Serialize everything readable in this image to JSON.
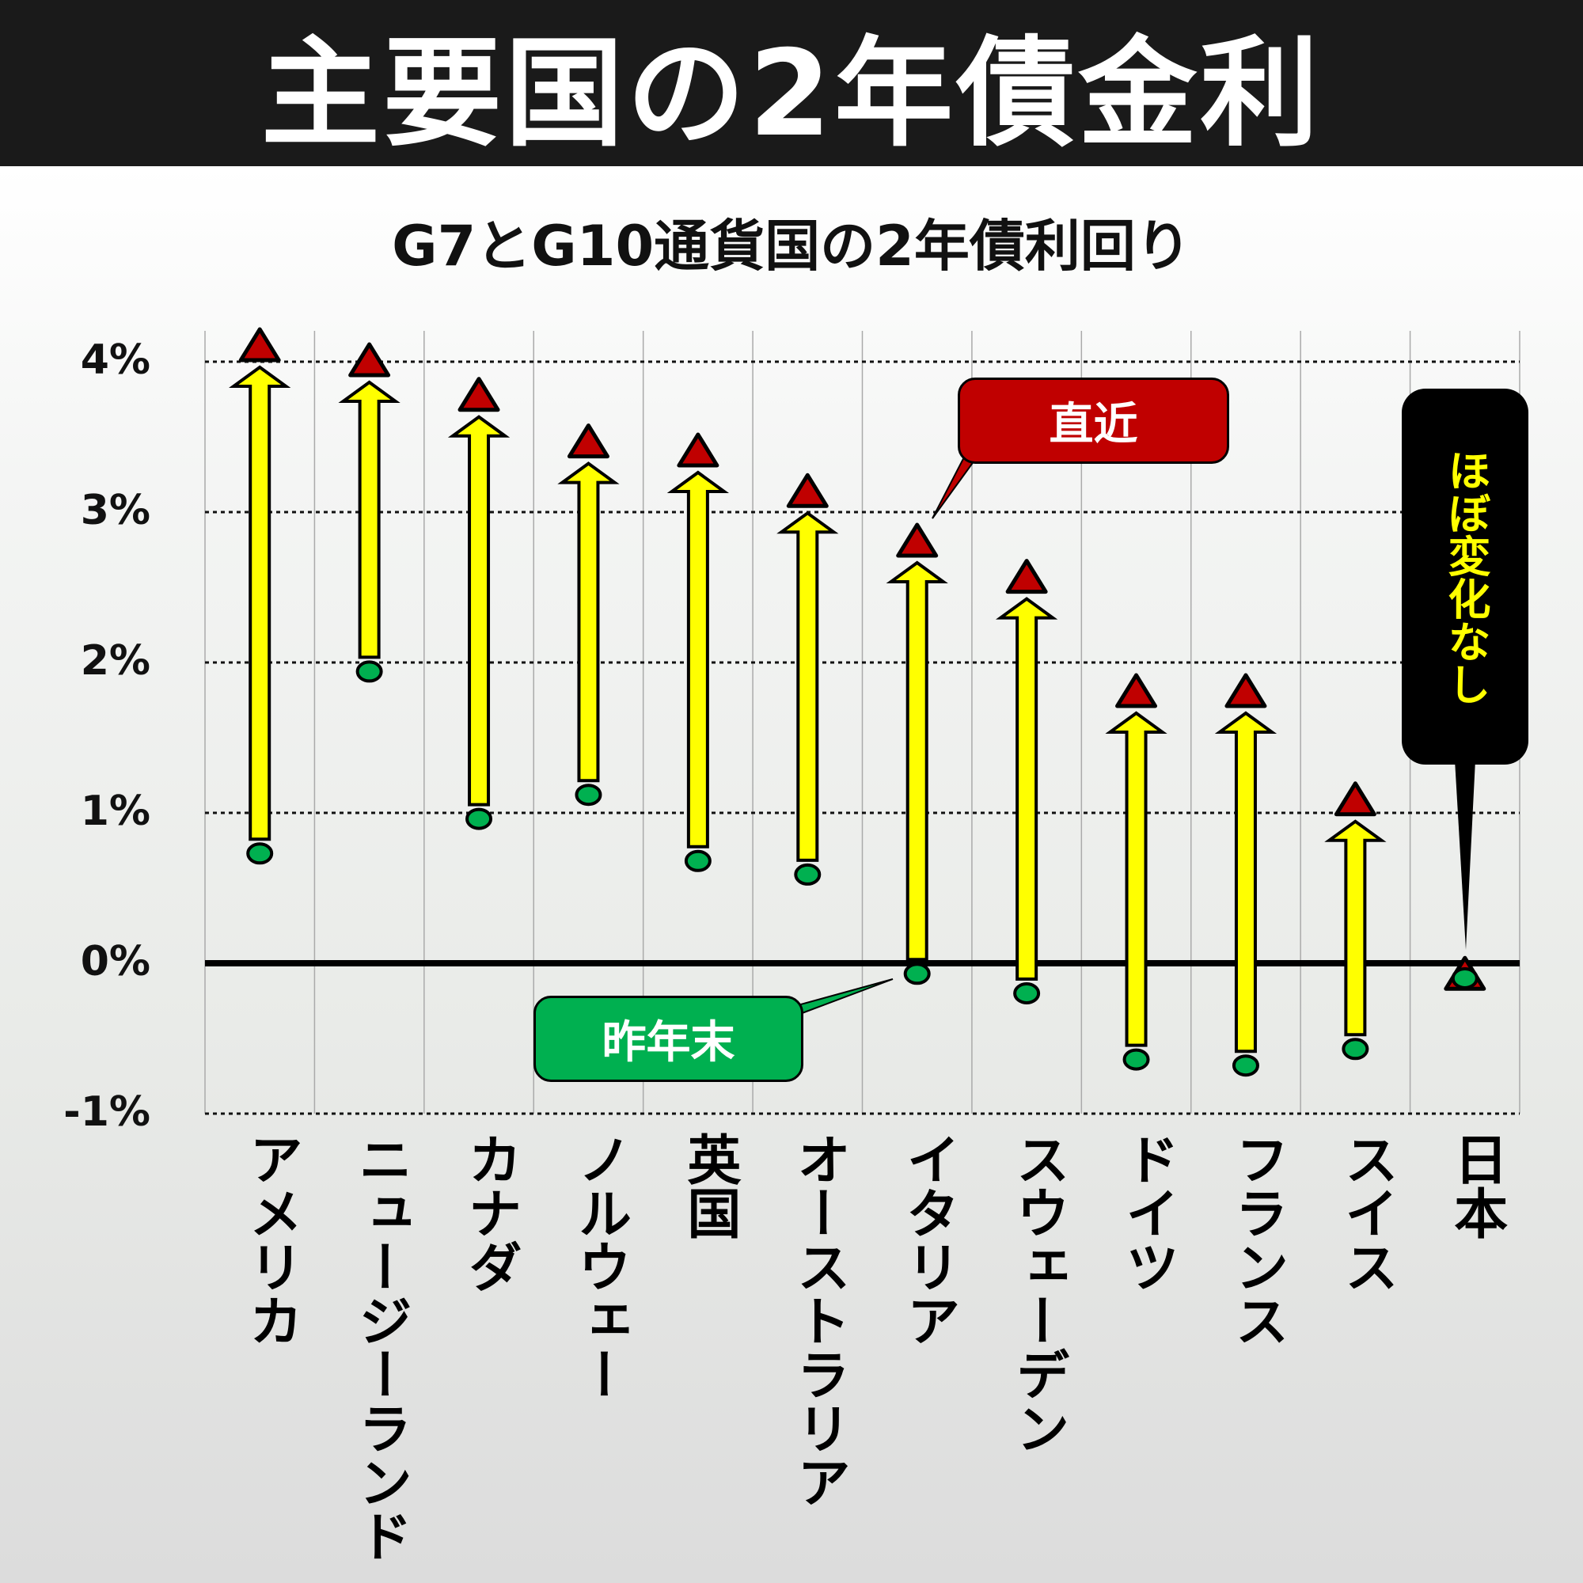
{
  "header": {
    "title": "主要国の2年債金利"
  },
  "subtitle": "G7とG10通貨国の2年債利回り",
  "y_axis": {
    "ticks": [
      "4%",
      "3%",
      "2%",
      "1%",
      "0%",
      "-1%"
    ]
  },
  "callouts": {
    "latest": "直近",
    "last_year_end": "昨年末",
    "japan_note": "ほぼ変化なし"
  },
  "colors": {
    "latest_marker": "#c00000",
    "year_end_marker": "#00b050",
    "arrow": "#ffff00",
    "note_bg": "#000000",
    "note_text": "#ffff00"
  },
  "chart_data": {
    "type": "dot-arrow",
    "title": "主要国の2年債金利",
    "subtitle": "G7とG10通貨国の2年債利回り",
    "xlabel": "",
    "ylabel": "",
    "ylim": [
      -1,
      4
    ],
    "y_ticks": [
      -1,
      0,
      1,
      2,
      3,
      4
    ],
    "grid": true,
    "categories": [
      "アメリカ",
      "ニュージーランド",
      "カナダ",
      "ノルウェー",
      "英国",
      "オーストラリア",
      "イタリア",
      "スウェーデン",
      "ドイツ",
      "フランス",
      "スイス",
      "日本"
    ],
    "series": [
      {
        "name": "昨年末",
        "marker": "circle",
        "color": "#00b050",
        "values": [
          0.73,
          1.94,
          0.96,
          1.12,
          0.68,
          0.59,
          -0.07,
          -0.2,
          -0.64,
          -0.68,
          -0.57,
          -0.1
        ]
      },
      {
        "name": "直近",
        "marker": "triangle",
        "color": "#c00000",
        "values": [
          4.1,
          4.0,
          3.77,
          3.46,
          3.4,
          3.13,
          2.8,
          2.56,
          1.8,
          1.8,
          1.08,
          -0.08
        ]
      }
    ],
    "annotations": [
      "直近",
      "昨年末",
      "ほぼ変化なし"
    ]
  }
}
